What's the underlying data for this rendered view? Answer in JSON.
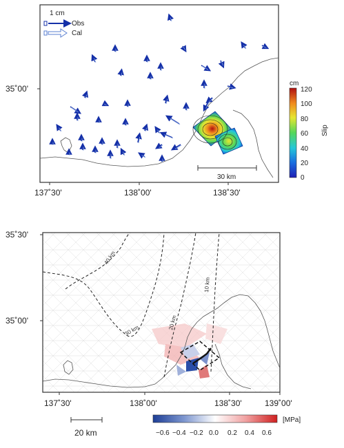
{
  "top_map": {
    "legend": {
      "scale_label": "1 cm",
      "obs_label": "Obs",
      "cal_label": "Cal"
    },
    "lat_ticks": [
      "35˚00'"
    ],
    "lon_ticks": [
      "137˚30'",
      "138˚00'",
      "138˚30'"
    ],
    "scalebar_label": "30 km",
    "colorbar": {
      "unit": "cm",
      "title": "Slip",
      "ticks": [
        "120",
        "100",
        "80",
        "60",
        "40",
        "20",
        "0"
      ]
    }
  },
  "bottom_map": {
    "lat_ticks": [
      "35˚30'",
      "35˚00'"
    ],
    "lon_ticks": [
      "137˚30'",
      "138˚00'",
      "138˚30'",
      "139˚00'"
    ],
    "contour_labels": [
      "40 km",
      "30 km",
      "20 km",
      "10 km"
    ],
    "scalebar_label": "20 km",
    "colorbar": {
      "unit": "[MPa]",
      "ticks": [
        "−0.6",
        "−0.4",
        "−0.2",
        "0.0",
        "0.2",
        "0.4",
        "0.6"
      ]
    }
  }
}
